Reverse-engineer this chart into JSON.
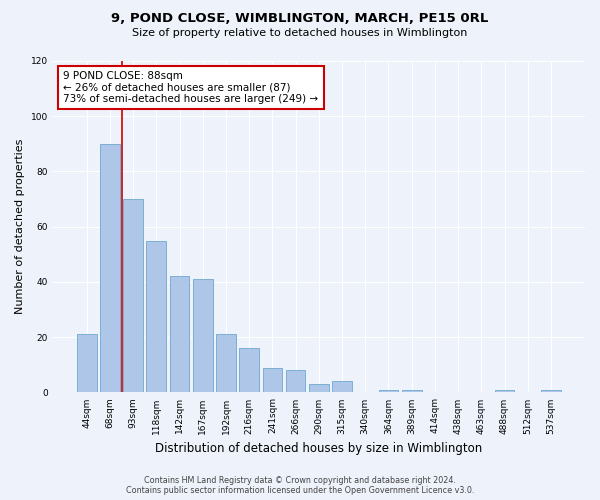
{
  "title": "9, POND CLOSE, WIMBLINGTON, MARCH, PE15 0RL",
  "subtitle": "Size of property relative to detached houses in Wimblington",
  "xlabel": "Distribution of detached houses by size in Wimblington",
  "ylabel": "Number of detached properties",
  "categories": [
    "44sqm",
    "68sqm",
    "93sqm",
    "118sqm",
    "142sqm",
    "167sqm",
    "192sqm",
    "216sqm",
    "241sqm",
    "266sqm",
    "290sqm",
    "315sqm",
    "340sqm",
    "364sqm",
    "389sqm",
    "414sqm",
    "438sqm",
    "463sqm",
    "488sqm",
    "512sqm",
    "537sqm"
  ],
  "values": [
    21,
    90,
    70,
    55,
    42,
    41,
    21,
    16,
    9,
    8,
    3,
    4,
    0,
    1,
    1,
    0,
    0,
    0,
    1,
    0,
    1
  ],
  "bar_color": "#aec6e8",
  "bar_edge_color": "#7bafd4",
  "subject_line_color": "#cc0000",
  "annotation_box_color": "#ffffff",
  "annotation_box_edge_color": "#cc0000",
  "subject_label": "9 POND CLOSE: 88sqm",
  "annotation_line1": "← 26% of detached houses are smaller (87)",
  "annotation_line2": "73% of semi-detached houses are larger (249) →",
  "ylim": [
    0,
    120
  ],
  "yticks": [
    0,
    20,
    40,
    60,
    80,
    100,
    120
  ],
  "footer_line1": "Contains HM Land Registry data © Crown copyright and database right 2024.",
  "footer_line2": "Contains public sector information licensed under the Open Government Licence v3.0.",
  "background_color": "#eef2fb",
  "plot_bg_color": "#eef2fb",
  "title_fontsize": 9.5,
  "subtitle_fontsize": 8,
  "ylabel_fontsize": 8,
  "xlabel_fontsize": 8.5,
  "tick_fontsize": 6.5,
  "annotation_fontsize": 7.5,
  "footer_fontsize": 5.8
}
